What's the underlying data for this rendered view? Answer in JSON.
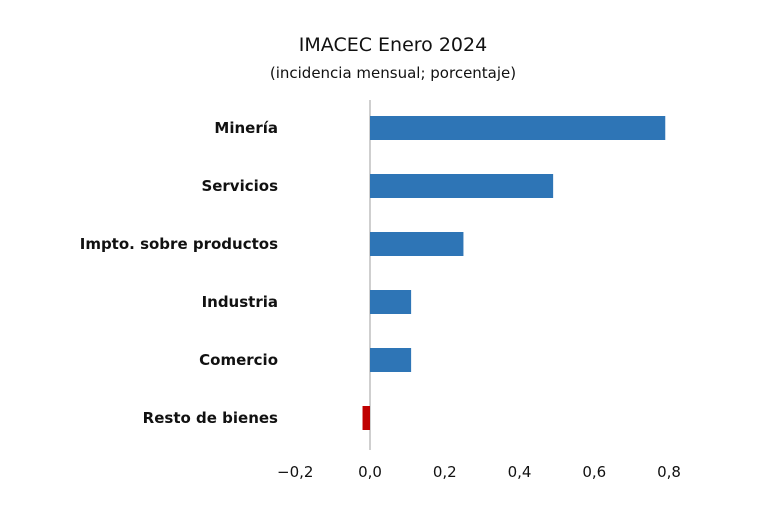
{
  "chart_data": {
    "type": "bar",
    "orientation": "horizontal",
    "title": "IMACEC Enero 2024",
    "subtitle": "(incidencia mensual; porcentaje)",
    "xlabel": "",
    "ylabel": "",
    "xlim": [
      -0.2,
      0.8
    ],
    "grid": false,
    "legend": "none",
    "x_ticks": [
      -0.2,
      0.0,
      0.2,
      0.4,
      0.6,
      0.8
    ],
    "x_tick_labels": [
      "−0,2",
      "0,0",
      "0,2",
      "0,4",
      "0,6",
      "0,8"
    ],
    "categories": [
      "Minería",
      "Servicios",
      "Impto. sobre productos",
      "Industria",
      "Comercio",
      "Resto de bienes"
    ],
    "values": [
      0.79,
      0.49,
      0.25,
      0.11,
      0.11,
      -0.02
    ],
    "colors": {
      "positive": "#2E75B6",
      "negative": "#C00000",
      "axis": "#BFBFBF"
    }
  }
}
